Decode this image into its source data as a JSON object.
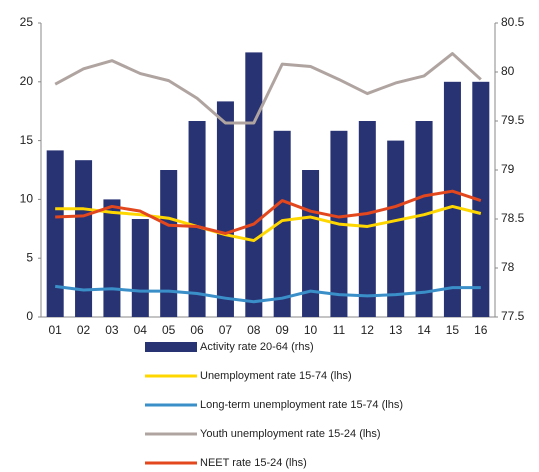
{
  "chart_data": {
    "type": "bar-line",
    "categories": [
      "01",
      "02",
      "03",
      "04",
      "05",
      "06",
      "07",
      "08",
      "09",
      "10",
      "11",
      "12",
      "13",
      "14",
      "15",
      "16"
    ],
    "ylim": [
      0,
      25
    ],
    "yticks": [
      0,
      5,
      10,
      15,
      20,
      25
    ],
    "y2lim": [
      77.5,
      80.5
    ],
    "y2ticks": [
      77.5,
      78,
      78.5,
      79,
      79.5,
      80,
      80.5
    ],
    "legend": "bottom",
    "series": [
      {
        "name": "Activity rate 20-64 (rhs)",
        "type": "bar",
        "axis": "y2",
        "color": "#283374",
        "values": [
          79.2,
          79.1,
          78.7,
          78.5,
          79.0,
          79.5,
          79.7,
          80.2,
          79.4,
          79.0,
          79.4,
          79.5,
          79.3,
          79.5,
          79.9,
          79.9
        ]
      },
      {
        "name": "Unemployment rate 15-74 (lhs)",
        "type": "line",
        "color": "#ffd700",
        "values": [
          9.2,
          9.2,
          8.9,
          8.7,
          8.4,
          7.7,
          7.0,
          6.5,
          8.2,
          8.5,
          7.9,
          7.7,
          8.2,
          8.7,
          9.4,
          8.8
        ]
      },
      {
        "name": "Long-term unemployment rate 15-74 (lhs)",
        "type": "line",
        "color": "#3a8fc9",
        "values": [
          2.6,
          2.3,
          2.4,
          2.2,
          2.2,
          2.0,
          1.6,
          1.3,
          1.6,
          2.2,
          1.9,
          1.8,
          1.9,
          2.1,
          2.5,
          2.5
        ]
      },
      {
        "name": "Youth unemployment rate 15-24 (lhs)",
        "type": "line",
        "color": "#b0a4a0",
        "values": [
          19.8,
          21.1,
          21.8,
          20.7,
          20.1,
          18.6,
          16.5,
          16.5,
          21.5,
          21.3,
          20.2,
          19.0,
          19.9,
          20.5,
          22.4,
          20.2
        ]
      },
      {
        "name": "NEET rate 15-24 (lhs)",
        "type": "line",
        "color": "#e3471d",
        "values": [
          8.5,
          8.6,
          9.4,
          9.0,
          7.8,
          7.7,
          7.1,
          7.9,
          9.9,
          9.0,
          8.5,
          8.8,
          9.4,
          10.3,
          10.7,
          9.9
        ]
      }
    ]
  }
}
